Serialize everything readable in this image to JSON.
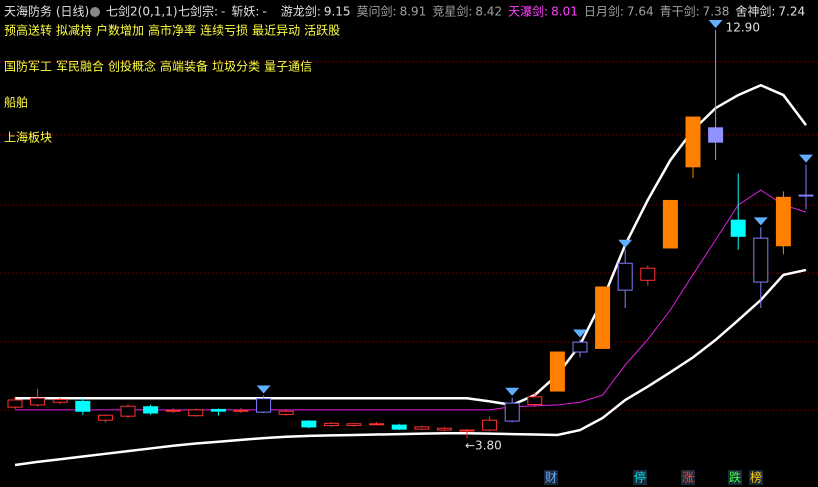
{
  "header": {
    "stock": "天海防务 (日线)",
    "indicator": "七剑2(0,1,1)",
    "items": [
      {
        "label": "七剑宗:",
        "value": "-",
        "color": "#e0e0e0"
      },
      {
        "label": "斩妖:",
        "value": "-",
        "color": "#e0e0e0"
      },
      {
        "label": "游龙剑:",
        "value": 9.15,
        "color": "#e0e0e0"
      },
      {
        "label": "莫问剑:",
        "value": 8.91,
        "color": "#a0a0a0"
      },
      {
        "label": "竞星剑:",
        "value": 8.42,
        "color": "#a0a0a0"
      },
      {
        "label": "天瀑剑:",
        "value": 8.01,
        "color": "#ff40ff"
      },
      {
        "label": "日月剑:",
        "value": 7.64,
        "color": "#a0a0a0"
      },
      {
        "label": "青干剑:",
        "value": 7.38,
        "color": "#a0a0a0"
      },
      {
        "label": "舍神剑:",
        "value": 7.24,
        "color": "#e0e0e0"
      }
    ]
  },
  "tags": [
    [
      "预高送转",
      "拟减持",
      "户数增加",
      "高市净率",
      "连续亏损",
      "最近异动",
      "活跃股"
    ],
    [
      "国防军工",
      "军民融合",
      "创投概念",
      "高端装备",
      "垃圾分类",
      "量子通信"
    ],
    [
      "船舶"
    ],
    [
      "上海板块"
    ]
  ],
  "badges": [
    {
      "text": "财",
      "color": "#6fa8ff"
    },
    {
      "text": "停",
      "color": "#00e0e0"
    },
    {
      "text": "涨",
      "color": "#ff4040"
    },
    {
      "text": "跌",
      "color": "#40ff40"
    },
    {
      "text": "榜",
      "color": "#ffd000"
    }
  ],
  "chart_data": {
    "type": "candlestick",
    "ylim": [
      2.71,
      13.57
    ],
    "open": [
      4.49,
      4.54,
      4.6,
      4.62,
      4.2,
      4.29,
      4.5,
      4.4,
      4.3,
      4.44,
      4.4,
      4.38,
      4.33,
      4.18,
      4.08,
      4.08,
      4.1,
      4.09,
      4.0,
      3.98,
      3.96,
      3.98,
      4.18,
      4.55,
      4.85,
      5.72,
      5.8,
      7.1,
      7.32,
      8.04,
      9.85,
      10.72,
      8.66,
      7.28,
      8.09,
      9.2
    ],
    "high": [
      4.72,
      4.9,
      4.7,
      4.7,
      4.33,
      4.55,
      4.55,
      4.46,
      4.46,
      4.46,
      4.47,
      4.75,
      4.45,
      4.2,
      4.16,
      4.14,
      4.16,
      4.12,
      4.08,
      4.05,
      4.0,
      4.28,
      4.7,
      4.82,
      5.72,
      6.0,
      7.17,
      8.0,
      7.65,
      9.1,
      10.96,
      12.9,
      9.7,
      8.5,
      9.3,
      9.9
    ],
    "low": [
      4.45,
      4.5,
      4.56,
      4.32,
      4.15,
      4.25,
      4.32,
      4.36,
      4.28,
      4.3,
      4.36,
      4.36,
      4.3,
      4.02,
      4.05,
      4.05,
      4.08,
      3.98,
      3.98,
      3.95,
      3.8,
      3.95,
      4.15,
      4.5,
      4.85,
      5.6,
      5.8,
      6.7,
      7.2,
      8.04,
      9.6,
      10.0,
      8.0,
      6.7,
      7.9,
      8.9
    ],
    "close": [
      4.65,
      4.69,
      4.66,
      4.4,
      4.31,
      4.51,
      4.36,
      4.42,
      4.43,
      4.4,
      4.42,
      4.68,
      4.4,
      4.05,
      4.13,
      4.12,
      4.12,
      4.0,
      4.05,
      4.02,
      3.98,
      4.2,
      4.58,
      4.72,
      5.72,
      5.94,
      7.17,
      7.7,
      7.59,
      9.1,
      10.96,
      10.4,
      8.3,
      8.26,
      9.17,
      9.22
    ],
    "colors": [
      "#ff3232",
      "#ff3232",
      "#ff3232",
      "#00ffff",
      "#ff3232",
      "#ff3232",
      "#00ffff",
      "#ff3232",
      "#ff3232",
      "#00ffff",
      "#ff3232",
      "#8080ff",
      "#ff3232",
      "#00ffff",
      "#ff3232",
      "#ff3232",
      "#ff3232",
      "#00ffff",
      "#ff3232",
      "#ff3232",
      "#ff3232",
      "#ff3232",
      "#8080ff",
      "#ff3232",
      "#ff8000",
      "#8080ff",
      "#ff8000",
      "#8080ff",
      "#ff3232",
      "#ff8000",
      "#ff8000",
      "#9090ff",
      "#00ffff",
      "#8080ff",
      "#ff8000",
      "#8080ff"
    ],
    "hollow_colors": [
      "#ff3232",
      "#8080ff"
    ],
    "signal_colors": [
      "#8080ff",
      "#9090ff"
    ],
    "lines": [
      {
        "color": "#ffffff",
        "width": 2.5,
        "values": [
          4.69,
          4.69,
          4.69,
          4.69,
          4.69,
          4.69,
          4.69,
          4.69,
          4.69,
          4.69,
          4.69,
          4.69,
          4.69,
          4.69,
          4.69,
          4.69,
          4.69,
          4.69,
          4.69,
          4.69,
          4.69,
          4.62,
          4.54,
          4.76,
          5.21,
          5.88,
          6.88,
          8.11,
          9.11,
          10.0,
          10.67,
          11.16,
          11.45,
          11.67,
          11.45,
          10.78
        ]
      },
      {
        "color": "#e020e0",
        "width": 1,
        "values": [
          4.43,
          4.43,
          4.43,
          4.43,
          4.43,
          4.43,
          4.43,
          4.43,
          4.43,
          4.43,
          4.43,
          4.43,
          4.43,
          4.43,
          4.43,
          4.43,
          4.43,
          4.43,
          4.43,
          4.43,
          4.43,
          4.43,
          4.5,
          4.52,
          4.54,
          4.6,
          4.76,
          5.43,
          6.0,
          6.66,
          7.45,
          8.22,
          9.0,
          9.33,
          9.0,
          8.84
        ]
      },
      {
        "color": "#ffffff",
        "width": 2.5,
        "values": [
          3.2,
          3.27,
          3.33,
          3.39,
          3.45,
          3.51,
          3.57,
          3.63,
          3.68,
          3.72,
          3.76,
          3.8,
          3.83,
          3.85,
          3.86,
          3.87,
          3.88,
          3.89,
          3.9,
          3.91,
          3.91,
          3.9,
          3.89,
          3.88,
          3.87,
          3.98,
          4.25,
          4.65,
          4.95,
          5.27,
          5.6,
          5.99,
          6.43,
          6.88,
          7.44,
          7.55
        ]
      }
    ],
    "annotations": [
      {
        "value": 12.9,
        "label": "12.90"
      },
      {
        "value": 3.8,
        "label": "←3.80"
      }
    ]
  }
}
